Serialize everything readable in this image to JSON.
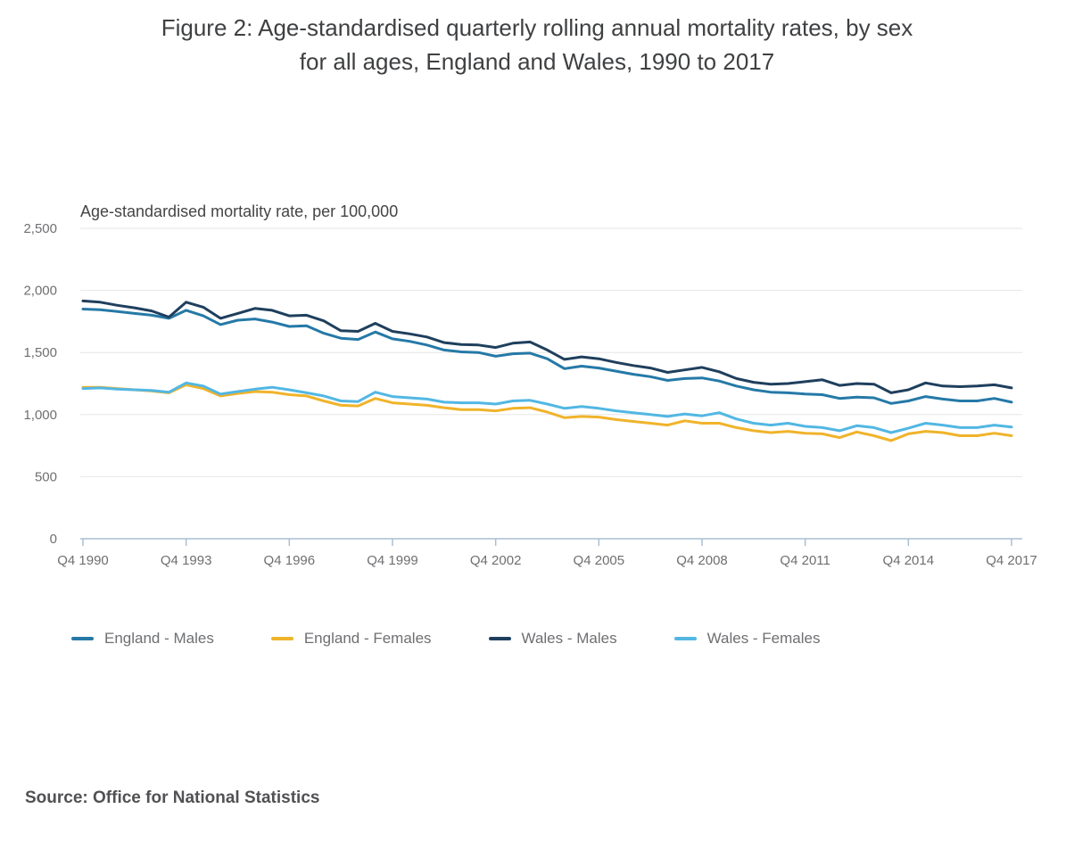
{
  "header": {
    "title_line1": "Figure 2: Age-standardised quarterly rolling annual mortality rates, by sex",
    "title_line2": "for all ages, England and Wales, 1990 to 2017"
  },
  "source_note": "Source: Office for National Statistics",
  "chart_data": {
    "type": "line",
    "axis_title": "Age-standardised mortality rate, per 100,000",
    "ylim": [
      0,
      2500
    ],
    "grid": true,
    "legend_position": "bottom",
    "x_start_year": 1990.75,
    "x_step_years": 0.5,
    "x_tick_labels": [
      "Q4 1990",
      "Q4 1993",
      "Q4 1996",
      "Q4 1999",
      "Q4 2002",
      "Q4 2005",
      "Q4 2008",
      "Q4 2011",
      "Q4 2014",
      "Q4 2017"
    ],
    "y_ticks": [
      {
        "value": 0,
        "label": "0"
      },
      {
        "value": 500,
        "label": "500"
      },
      {
        "value": 1000,
        "label": "1,000"
      },
      {
        "value": 1500,
        "label": "1,500"
      },
      {
        "value": 2000,
        "label": "2,000"
      },
      {
        "value": 2500,
        "label": "2,500"
      }
    ],
    "axis_color": "#a9bfd3",
    "gridline_color": "#e6e6e6",
    "series": [
      {
        "name": "England - Males",
        "color": "#2579a7",
        "values": [
          1850,
          1845,
          1830,
          1815,
          1800,
          1775,
          1840,
          1795,
          1725,
          1760,
          1770,
          1745,
          1710,
          1715,
          1655,
          1615,
          1605,
          1665,
          1610,
          1590,
          1560,
          1520,
          1505,
          1500,
          1470,
          1490,
          1495,
          1450,
          1370,
          1390,
          1375,
          1350,
          1325,
          1305,
          1275,
          1290,
          1295,
          1270,
          1230,
          1200,
          1180,
          1175,
          1165,
          1160,
          1130,
          1140,
          1135,
          1090,
          1110,
          1145,
          1125,
          1110,
          1110,
          1130,
          1100
        ]
      },
      {
        "name": "England - Females",
        "color": "#f0b32a",
        "values": [
          1220,
          1220,
          1210,
          1200,
          1190,
          1175,
          1240,
          1210,
          1150,
          1170,
          1185,
          1180,
          1160,
          1150,
          1110,
          1075,
          1070,
          1130,
          1095,
          1085,
          1075,
          1055,
          1040,
          1040,
          1030,
          1050,
          1055,
          1020,
          975,
          985,
          980,
          960,
          945,
          930,
          915,
          950,
          930,
          930,
          895,
          870,
          855,
          865,
          850,
          845,
          815,
          860,
          830,
          790,
          845,
          865,
          855,
          830,
          830,
          850,
          830
        ]
      },
      {
        "name": "Wales - Males",
        "color": "#1f3f5d",
        "values": [
          1915,
          1905,
          1880,
          1860,
          1835,
          1785,
          1905,
          1865,
          1775,
          1815,
          1855,
          1840,
          1795,
          1800,
          1755,
          1675,
          1670,
          1735,
          1670,
          1650,
          1625,
          1580,
          1565,
          1560,
          1540,
          1575,
          1585,
          1520,
          1445,
          1465,
          1450,
          1420,
          1395,
          1375,
          1340,
          1360,
          1380,
          1345,
          1290,
          1260,
          1245,
          1250,
          1265,
          1280,
          1235,
          1250,
          1245,
          1175,
          1200,
          1255,
          1230,
          1225,
          1230,
          1240,
          1215
        ]
      },
      {
        "name": "Wales - Females",
        "color": "#52b7e3",
        "values": [
          1210,
          1215,
          1205,
          1200,
          1195,
          1180,
          1255,
          1230,
          1165,
          1185,
          1205,
          1220,
          1200,
          1175,
          1150,
          1110,
          1105,
          1180,
          1145,
          1135,
          1125,
          1100,
          1095,
          1095,
          1085,
          1110,
          1115,
          1085,
          1050,
          1065,
          1050,
          1030,
          1015,
          1000,
          985,
          1005,
          990,
          1015,
          965,
          930,
          915,
          930,
          905,
          895,
          870,
          910,
          895,
          855,
          890,
          930,
          915,
          895,
          895,
          915,
          900
        ]
      }
    ]
  }
}
